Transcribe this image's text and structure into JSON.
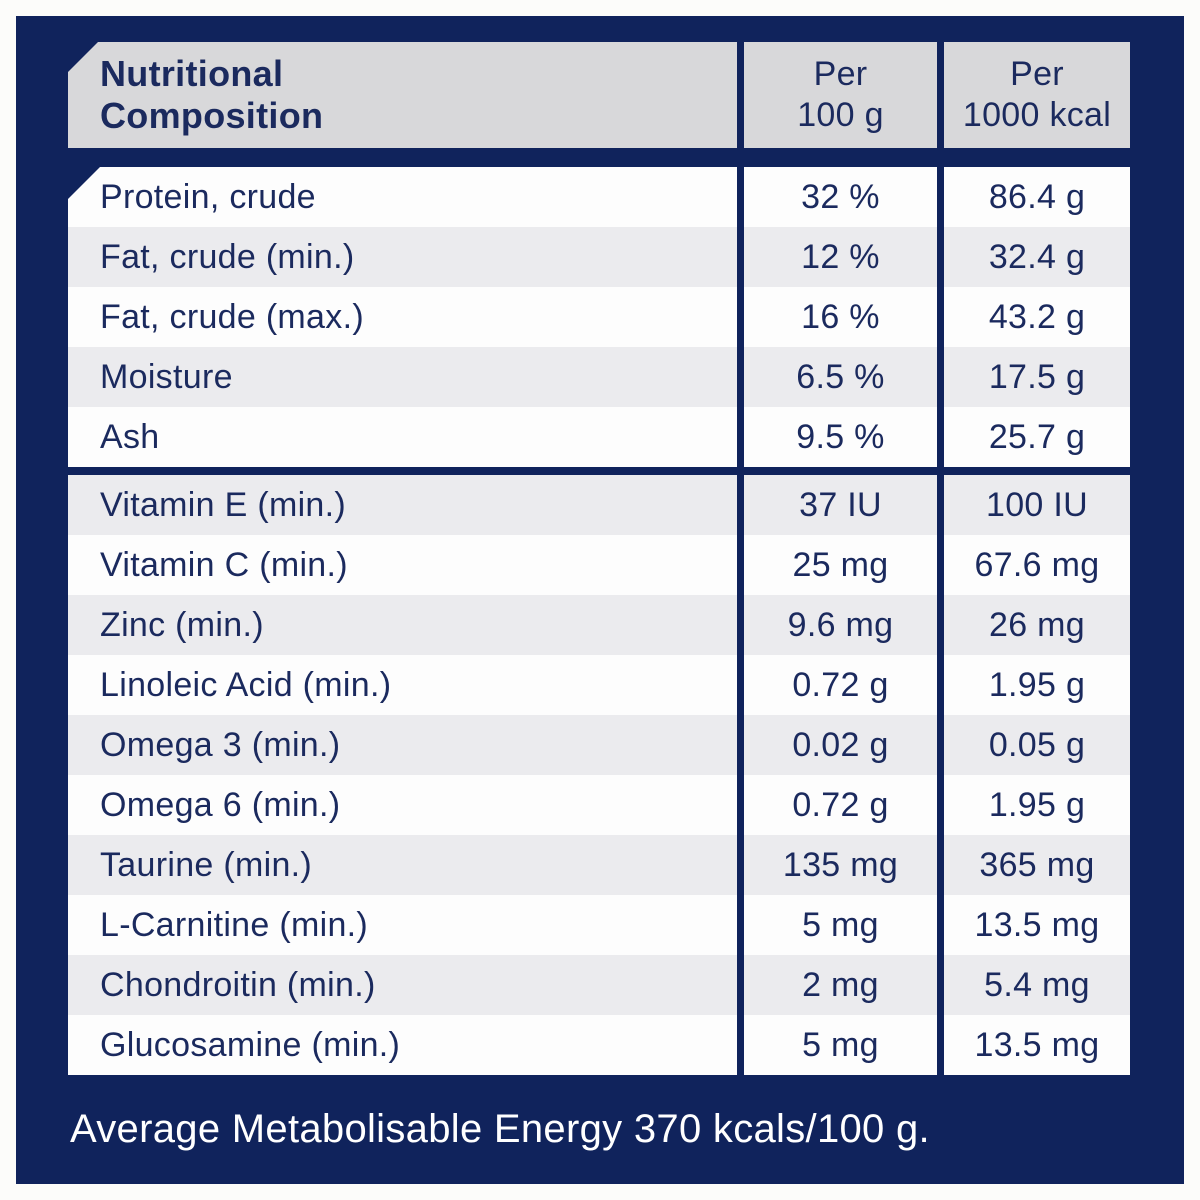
{
  "colors": {
    "panel_navy": "#10235c",
    "text_navy": "#1b2a5e",
    "header_gray": "#d8d8da",
    "row_white": "#fdfdfd",
    "row_gray": "#ebebee",
    "footer_text": "#ffffff",
    "page_bg": "#fcfcfa"
  },
  "table": {
    "title_line1": "Nutritional",
    "title_line2": "Composition",
    "col_per_100g_line1": "Per",
    "col_per_100g_line2": "100 g",
    "col_per_1000kcal_line1": "Per",
    "col_per_1000kcal_line2": "1000 kcal",
    "section_divider_after_row": 5,
    "rows": [
      {
        "label": "Protein, crude",
        "per_100g": "32 %",
        "per_1000kcal": "86.4 g"
      },
      {
        "label": "Fat, crude (min.)",
        "per_100g": "12 %",
        "per_1000kcal": "32.4 g"
      },
      {
        "label": "Fat, crude (max.)",
        "per_100g": "16 %",
        "per_1000kcal": "43.2 g"
      },
      {
        "label": "Moisture",
        "per_100g": "6.5 %",
        "per_1000kcal": "17.5 g"
      },
      {
        "label": "Ash",
        "per_100g": "9.5 %",
        "per_1000kcal": "25.7 g"
      },
      {
        "label": "Vitamin E (min.)",
        "per_100g": "37 IU",
        "per_1000kcal": "100 IU"
      },
      {
        "label": "Vitamin C (min.)",
        "per_100g": "25 mg",
        "per_1000kcal": "67.6 mg"
      },
      {
        "label": "Zinc (min.)",
        "per_100g": "9.6 mg",
        "per_1000kcal": "26 mg"
      },
      {
        "label": "Linoleic Acid (min.)",
        "per_100g": "0.72 g",
        "per_1000kcal": "1.95 g"
      },
      {
        "label": "Omega 3 (min.)",
        "per_100g": "0.02 g",
        "per_1000kcal": "0.05 g"
      },
      {
        "label": "Omega 6 (min.)",
        "per_100g": "0.72 g",
        "per_1000kcal": "1.95 g"
      },
      {
        "label": "Taurine (min.)",
        "per_100g": "135 mg",
        "per_1000kcal": "365 mg"
      },
      {
        "label": "L-Carnitine (min.)",
        "per_100g": "5 mg",
        "per_1000kcal": "13.5 mg"
      },
      {
        "label": "Chondroitin (min.)",
        "per_100g": "2 mg",
        "per_1000kcal": "5.4 mg"
      },
      {
        "label": "Glucosamine (min.)",
        "per_100g": "5 mg",
        "per_1000kcal": "13.5 mg"
      }
    ]
  },
  "footer": {
    "text": "Average Metabolisable Energy 370 kcals/100 g."
  }
}
